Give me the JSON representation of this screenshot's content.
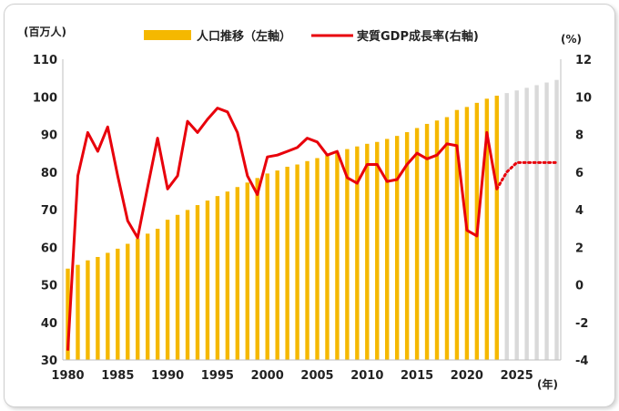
{
  "chart_data": {
    "type": "bar+line",
    "left_unit": "(百万人)",
    "right_unit": "(%)",
    "x_unit": "(年)",
    "legend": {
      "population": "人口推移（左軸）",
      "gdp": "実質GDP成長率(右軸)"
    },
    "colors": {
      "population": "#f5b800",
      "projection": "#d9d9d9",
      "gdp": "#e8000b",
      "axis": "#bfbfbf"
    },
    "x_ticks": [
      1980,
      1985,
      1990,
      1995,
      2000,
      2005,
      2010,
      2015,
      2020,
      2025
    ],
    "left_axis": {
      "min": 30,
      "max": 110,
      "ticks": [
        30,
        40,
        50,
        60,
        70,
        80,
        90,
        100,
        110
      ]
    },
    "right_axis": {
      "min": -4,
      "max": 12,
      "ticks": [
        -4,
        -2,
        0,
        2,
        4,
        6,
        8,
        10,
        12
      ]
    },
    "population_years": [
      1980,
      1981,
      1982,
      1983,
      1984,
      1985,
      1986,
      1987,
      1988,
      1989,
      1990,
      1991,
      1992,
      1993,
      1994,
      1995,
      1996,
      1997,
      1998,
      1999,
      2000,
      2001,
      2002,
      2003,
      2004,
      2005,
      2006,
      2007,
      2008,
      2009,
      2010,
      2011,
      2012,
      2013,
      2014,
      2015,
      2016,
      2017,
      2018,
      2019,
      2020,
      2021,
      2022,
      2023
    ],
    "population_values": [
      54.3,
      55.3,
      56.5,
      57.4,
      58.5,
      59.6,
      60.9,
      62.3,
      63.6,
      64.9,
      67.3,
      68.6,
      69.9,
      71.2,
      72.4,
      73.6,
      74.8,
      76.0,
      77.2,
      78.4,
      79.6,
      80.4,
      81.4,
      82.0,
      82.9,
      83.7,
      84.5,
      85.3,
      86.1,
      86.8,
      87.5,
      88.0,
      88.8,
      89.6,
      90.6,
      91.7,
      92.8,
      93.7,
      94.6,
      96.5,
      97.3,
      98.4,
      99.5,
      100.3
    ],
    "projection_years": [
      2024,
      2025,
      2026,
      2027,
      2028,
      2029
    ],
    "projection_values": [
      101.0,
      101.7,
      102.4,
      103.1,
      103.8,
      104.5
    ],
    "gdp_years": [
      1980,
      1981,
      1982,
      1983,
      1984,
      1985,
      1986,
      1987,
      1988,
      1989,
      1990,
      1991,
      1992,
      1993,
      1994,
      1995,
      1996,
      1997,
      1998,
      1999,
      2000,
      2001,
      2002,
      2003,
      2004,
      2005,
      2006,
      2007,
      2008,
      2009,
      2010,
      2011,
      2012,
      2013,
      2014,
      2015,
      2016,
      2017,
      2018,
      2019,
      2020,
      2021,
      2022,
      2023
    ],
    "gdp_values": [
      -3.5,
      5.8,
      8.1,
      7.1,
      8.4,
      5.8,
      3.4,
      2.5,
      5.2,
      7.8,
      5.1,
      5.8,
      8.7,
      8.1,
      8.8,
      9.4,
      9.2,
      8.1,
      5.8,
      4.8,
      6.8,
      6.9,
      7.1,
      7.3,
      7.8,
      7.6,
      6.9,
      7.1,
      5.7,
      5.4,
      6.4,
      6.4,
      5.5,
      5.6,
      6.4,
      7.0,
      6.7,
      6.9,
      7.5,
      7.4,
      2.9,
      2.6,
      8.1,
      5.1
    ],
    "gdp_projection_years": [
      2023,
      2024,
      2025,
      2026,
      2027,
      2028,
      2029
    ],
    "gdp_projection_values": [
      5.1,
      6.0,
      6.5,
      6.5,
      6.5,
      6.5,
      6.5
    ]
  }
}
